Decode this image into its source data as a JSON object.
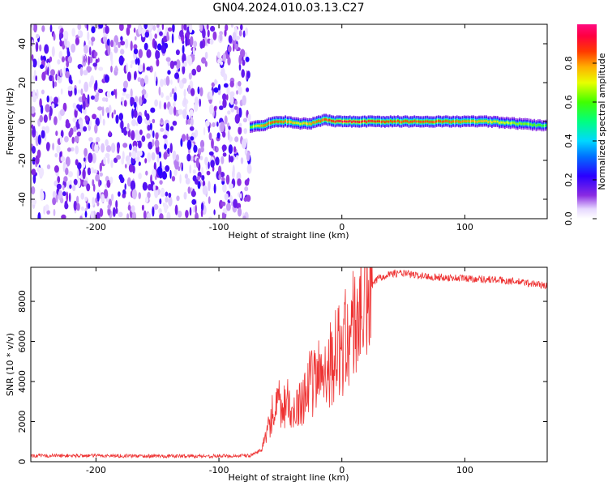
{
  "figure": {
    "title": "GN04.2024.010.03.13.C27"
  },
  "chart_data": [
    {
      "type": "heatmap",
      "title": "GN04.2024.010.03.13.C27",
      "xlabel": "Height of straight line (km)",
      "ylabel": "Frequency (Hz)",
      "xlim": [
        -253,
        167
      ],
      "ylim": [
        -50,
        50
      ],
      "xticks": [
        -200,
        -100,
        0,
        100
      ],
      "yticks": [
        40,
        20,
        0,
        -20,
        -40
      ],
      "colorbar": {
        "label": "Normalized spectral amplitude",
        "range": [
          0.0,
          1.0
        ],
        "ticks": [
          0.0,
          0.2,
          0.4,
          0.6,
          0.8
        ],
        "colormap": "white-purple-blue-cyan-green-yellow-orange-red-magenta"
      },
      "noise_region_x": [
        -253,
        -75
      ],
      "line_track": {
        "x": [
          -75,
          -65,
          -55,
          -45,
          -35,
          -25,
          -15,
          -5,
          0,
          20,
          40,
          60,
          80,
          100,
          120,
          140,
          160,
          167
        ],
        "freq": [
          -3,
          -2,
          0,
          0,
          -1,
          -1,
          1,
          0,
          0,
          0,
          0,
          0,
          0,
          0,
          0,
          -1,
          -2,
          -2
        ],
        "amplitude": [
          0.6,
          0.8,
          0.85,
          0.8,
          0.7,
          0.8,
          0.85,
          0.9,
          0.95,
          0.9,
          0.85,
          0.85,
          0.85,
          0.8,
          0.75,
          0.65,
          0.6,
          0.55
        ]
      }
    },
    {
      "type": "line",
      "xlabel": "Height of straight line (km)",
      "ylabel": "SNR (10 * v/v)",
      "xlim": [
        -253,
        167
      ],
      "ylim": [
        0,
        9700
      ],
      "xticks": [
        -200,
        -100,
        0,
        100
      ],
      "yticks": [
        0,
        2000,
        4000,
        6000,
        8000
      ],
      "color": "#ee3333",
      "series": [
        {
          "name": "SNR",
          "x": [
            -253,
            -200,
            -150,
            -100,
            -75,
            -65,
            -60,
            -57,
            -55,
            -52,
            -48,
            -45,
            -42,
            -40,
            -37,
            -35,
            -30,
            -25,
            -20,
            -15,
            -10,
            -5,
            0,
            5,
            10,
            15,
            20,
            25,
            30,
            40,
            50,
            60,
            80,
            100,
            120,
            140,
            160,
            167
          ],
          "y": [
            300,
            300,
            280,
            280,
            300,
            600,
            1500,
            2600,
            1800,
            3000,
            2200,
            3400,
            2500,
            1800,
            3500,
            2800,
            3600,
            3900,
            4200,
            4700,
            4900,
            5300,
            5700,
            6200,
            6900,
            7500,
            8200,
            8800,
            9200,
            9400,
            9400,
            9300,
            9200,
            9150,
            9100,
            9000,
            8850,
            8750
          ]
        }
      ]
    }
  ]
}
